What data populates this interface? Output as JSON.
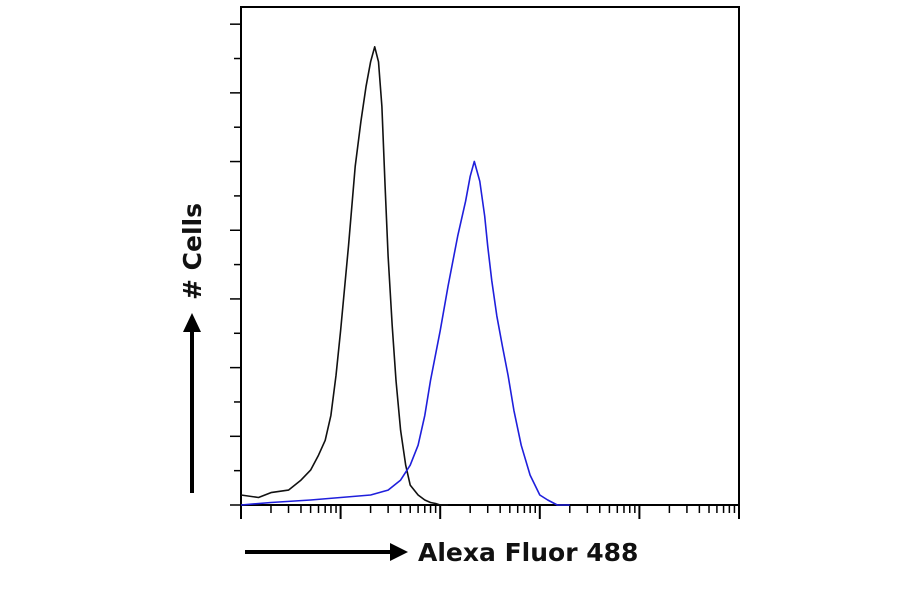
{
  "chart_data": {
    "type": "line",
    "subtype": "flow-cytometry-histogram",
    "xlabel": "Alexa Fluor 488",
    "ylabel": "# Cells",
    "x_scale": "log",
    "xlim": [
      1,
      100000
    ],
    "ylim": [
      0,
      100
    ],
    "grid": false,
    "legend": "none",
    "series": [
      {
        "color": "#111111",
        "x": [
          1,
          1.5,
          2,
          3,
          4,
          5,
          6,
          7,
          8,
          9,
          10,
          12,
          14,
          16,
          18,
          20,
          22,
          24,
          26,
          28,
          30,
          33,
          36,
          40,
          45,
          50,
          60,
          70,
          80,
          90,
          100,
          120
        ],
        "y": [
          2,
          1.5,
          2.5,
          3,
          5,
          7,
          10,
          13,
          18,
          26,
          35,
          52,
          68,
          77,
          84,
          89,
          92,
          89,
          80,
          64,
          50,
          36,
          25,
          15,
          8,
          4,
          2,
          1,
          0.5,
          0.3,
          0,
          0
        ]
      },
      {
        "color": "#1f1fdc",
        "x": [
          1,
          2,
          5,
          10,
          20,
          30,
          40,
          50,
          60,
          70,
          80,
          100,
          120,
          150,
          180,
          200,
          220,
          250,
          280,
          300,
          330,
          370,
          420,
          480,
          550,
          650,
          800,
          1000,
          1200,
          1500,
          2000
        ],
        "y": [
          0,
          0.5,
          1,
          1.5,
          2,
          3,
          5,
          8,
          12,
          18,
          25,
          35,
          44,
          54,
          61,
          66,
          69,
          65,
          58,
          52,
          45,
          38,
          32,
          26,
          19,
          12,
          6,
          2,
          1,
          0,
          0
        ]
      }
    ]
  }
}
